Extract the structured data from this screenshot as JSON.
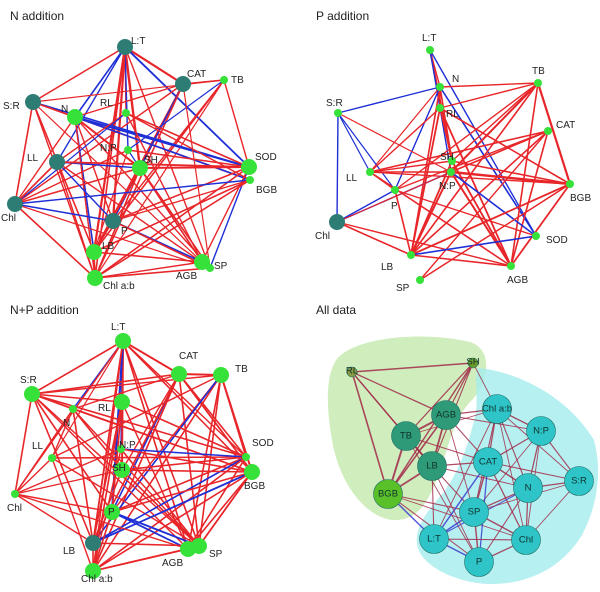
{
  "panels": [
    {
      "id": "n",
      "title": "N addition",
      "nodes": [
        {
          "name": "L:T",
          "size": "big",
          "color": "#2e7d74"
        },
        {
          "name": "CAT",
          "size": "big",
          "color": "#2e7d74"
        },
        {
          "name": "TB",
          "size": "small",
          "color": "#36e23a"
        },
        {
          "name": "S:R",
          "size": "big",
          "color": "#2e7d74"
        },
        {
          "name": "N",
          "size": "big",
          "color": "#36e23a"
        },
        {
          "name": "RL",
          "size": "small",
          "color": "#36e23a"
        },
        {
          "name": "N:P",
          "size": "small",
          "color": "#36e23a"
        },
        {
          "name": "SH",
          "size": "big",
          "color": "#36e23a"
        },
        {
          "name": "LL",
          "size": "big",
          "color": "#2e7d74"
        },
        {
          "name": "SOD",
          "size": "big",
          "color": "#36e23a"
        },
        {
          "name": "BGB",
          "size": "small",
          "color": "#36e23a"
        },
        {
          "name": "Chl",
          "size": "big",
          "color": "#2e7d74"
        },
        {
          "name": "P",
          "size": "big",
          "color": "#2e7d74"
        },
        {
          "name": "LB",
          "size": "big",
          "color": "#36e23a"
        },
        {
          "name": "Chl a:b",
          "size": "big",
          "color": "#36e23a"
        },
        {
          "name": "AGB",
          "size": "small",
          "color": "#36e23a"
        },
        {
          "name": "SP",
          "size": "big",
          "color": "#36e23a"
        }
      ]
    },
    {
      "id": "p",
      "title": "P addition",
      "nodes": [
        {
          "name": "L:T",
          "size": "small",
          "color": "#36e23a"
        },
        {
          "name": "N",
          "size": "small",
          "color": "#36e23a"
        },
        {
          "name": "TB",
          "size": "small",
          "color": "#36e23a"
        },
        {
          "name": "S:R",
          "size": "small",
          "color": "#36e23a"
        },
        {
          "name": "RL",
          "size": "small",
          "color": "#36e23a"
        },
        {
          "name": "CAT",
          "size": "small",
          "color": "#36e23a"
        },
        {
          "name": "SH",
          "size": "small",
          "color": "#36e23a"
        },
        {
          "name": "LL",
          "size": "small",
          "color": "#36e23a"
        },
        {
          "name": "N:P",
          "size": "small",
          "color": "#36e23a"
        },
        {
          "name": "BGB",
          "size": "small",
          "color": "#36e23a"
        },
        {
          "name": "P",
          "size": "small",
          "color": "#36e23a"
        },
        {
          "name": "Chl",
          "size": "big",
          "color": "#2e7d74"
        },
        {
          "name": "SOD",
          "size": "small",
          "color": "#36e23a"
        },
        {
          "name": "LB",
          "size": "small",
          "color": "#36e23a"
        },
        {
          "name": "AGB",
          "size": "small",
          "color": "#36e23a"
        },
        {
          "name": "SP",
          "size": "small",
          "color": "#36e23a"
        }
      ]
    },
    {
      "id": "np",
      "title": "N+P addition",
      "nodes": [
        {
          "name": "L:T",
          "size": "big",
          "color": "#36e23a"
        },
        {
          "name": "CAT",
          "size": "big",
          "color": "#36e23a"
        },
        {
          "name": "TB",
          "size": "big",
          "color": "#36e23a"
        },
        {
          "name": "S:R",
          "size": "big",
          "color": "#36e23a"
        },
        {
          "name": "N",
          "size": "small",
          "color": "#36e23a"
        },
        {
          "name": "RL",
          "size": "big",
          "color": "#36e23a"
        },
        {
          "name": "LL",
          "size": "small",
          "color": "#36e23a"
        },
        {
          "name": "N:P",
          "size": "small",
          "color": "#36e23a"
        },
        {
          "name": "SOD",
          "size": "small",
          "color": "#36e23a"
        },
        {
          "name": "SH",
          "size": "big",
          "color": "#36e23a"
        },
        {
          "name": "BGB",
          "size": "big",
          "color": "#36e23a"
        },
        {
          "name": "Chl",
          "size": "small",
          "color": "#36e23a"
        },
        {
          "name": "P",
          "size": "big",
          "color": "#36e23a"
        },
        {
          "name": "LB",
          "size": "big",
          "color": "#2e7d74"
        },
        {
          "name": "SP",
          "size": "big",
          "color": "#36e23a"
        },
        {
          "name": "AGB",
          "size": "big",
          "color": "#36e23a"
        },
        {
          "name": "Chl a:b",
          "size": "big",
          "color": "#36e23a"
        }
      ]
    },
    {
      "id": "all",
      "title": "All data",
      "nodes": [
        {
          "name": "RL",
          "size": "small",
          "color": "#8a9a44"
        },
        {
          "name": "SH",
          "size": "small",
          "color": "#6a9a2a"
        },
        {
          "name": "AGB",
          "size": "big",
          "color": "#2e9a78"
        },
        {
          "name": "TB",
          "size": "big",
          "color": "#2e9a78"
        },
        {
          "name": "LB",
          "size": "big",
          "color": "#2e9a78"
        },
        {
          "name": "BGB",
          "size": "big",
          "color": "#5ac02a"
        },
        {
          "name": "Chl a:b",
          "size": "big",
          "color": "#2ec4c8"
        },
        {
          "name": "N:P",
          "size": "big",
          "color": "#2ec4c8"
        },
        {
          "name": "CAT",
          "size": "big",
          "color": "#2ec4c8"
        },
        {
          "name": "N",
          "size": "big",
          "color": "#2ec4c8"
        },
        {
          "name": "S:R",
          "size": "big",
          "color": "#2ec4c8"
        },
        {
          "name": "SP",
          "size": "big",
          "color": "#2ec4c8"
        },
        {
          "name": "L:T",
          "size": "big",
          "color": "#2ec4c8"
        },
        {
          "name": "Chl",
          "size": "big",
          "color": "#2ec4c8"
        },
        {
          "name": "P",
          "size": "big",
          "color": "#2ec4c8"
        }
      ]
    }
  ],
  "colors": {
    "positive_edge": "#e8262a",
    "negative_edge": "#1e2fd6",
    "all_edge": "#a22a4a",
    "group1_fill": "#c8ebb2",
    "group2_fill": "#a4ecec"
  }
}
